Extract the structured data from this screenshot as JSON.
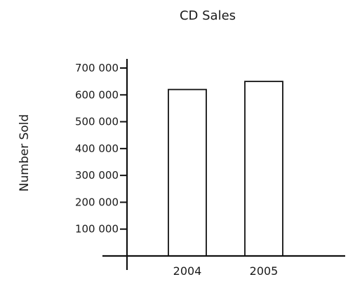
{
  "chart_data": {
    "type": "bar",
    "title": "CD Sales",
    "xlabel": "",
    "ylabel": "Number Sold",
    "categories": [
      "2004",
      "2005"
    ],
    "values": [
      620000,
      650000
    ],
    "ylim": [
      0,
      700000
    ],
    "yticks": [
      100000,
      200000,
      300000,
      400000,
      500000,
      600000,
      700000
    ],
    "ytick_labels": [
      "100 000",
      "200 000",
      "300 000",
      "400 000",
      "500 000",
      "600 000",
      "700 000"
    ],
    "grid": false,
    "legend": "none",
    "colors": {
      "bar_fill": "#ffffff",
      "bar_stroke": "#111111",
      "axis": "#111111"
    }
  }
}
